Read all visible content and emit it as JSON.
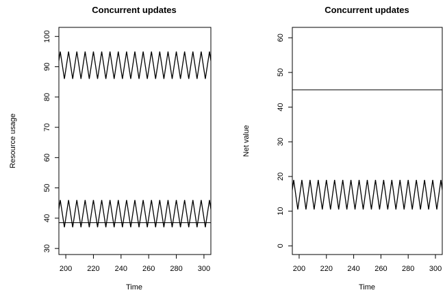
{
  "chart_data": [
    {
      "type": "line",
      "title": "Concurrent updates",
      "xlabel": "Time",
      "ylabel": "Resource usage",
      "xlim": [
        195,
        305
      ],
      "ylim": [
        28,
        103
      ],
      "xticks": [
        200,
        220,
        240,
        260,
        280,
        300
      ],
      "yticks": [
        30,
        40,
        50,
        60,
        70,
        80,
        90,
        100
      ],
      "grid": false,
      "series": [
        {
          "kind": "zigzag",
          "x_start": 195,
          "x_end": 305,
          "period": 6,
          "x_first_peak": 196,
          "low": 86,
          "high": 95,
          "color": "#000000"
        },
        {
          "kind": "zigzag",
          "x_start": 195,
          "x_end": 305,
          "period": 6,
          "x_first_peak": 196,
          "low": 37,
          "high": 46,
          "color": "#000000"
        },
        {
          "kind": "hline",
          "y": 38.5,
          "color": "#000000"
        }
      ]
    },
    {
      "type": "line",
      "title": "Concurrent updates",
      "xlabel": "Time",
      "ylabel": "Net value",
      "xlim": [
        195,
        305
      ],
      "ylim": [
        -2.5,
        63
      ],
      "xticks": [
        200,
        220,
        240,
        260,
        280,
        300
      ],
      "yticks": [
        0,
        10,
        20,
        30,
        40,
        50,
        60
      ],
      "grid": false,
      "series": [
        {
          "kind": "zigzag",
          "x_start": 195,
          "x_end": 305,
          "period": 6,
          "x_first_peak": 196,
          "low": 10.5,
          "high": 19,
          "color": "#000000"
        },
        {
          "kind": "hline",
          "y": 45,
          "color": "#000000"
        }
      ]
    }
  ]
}
